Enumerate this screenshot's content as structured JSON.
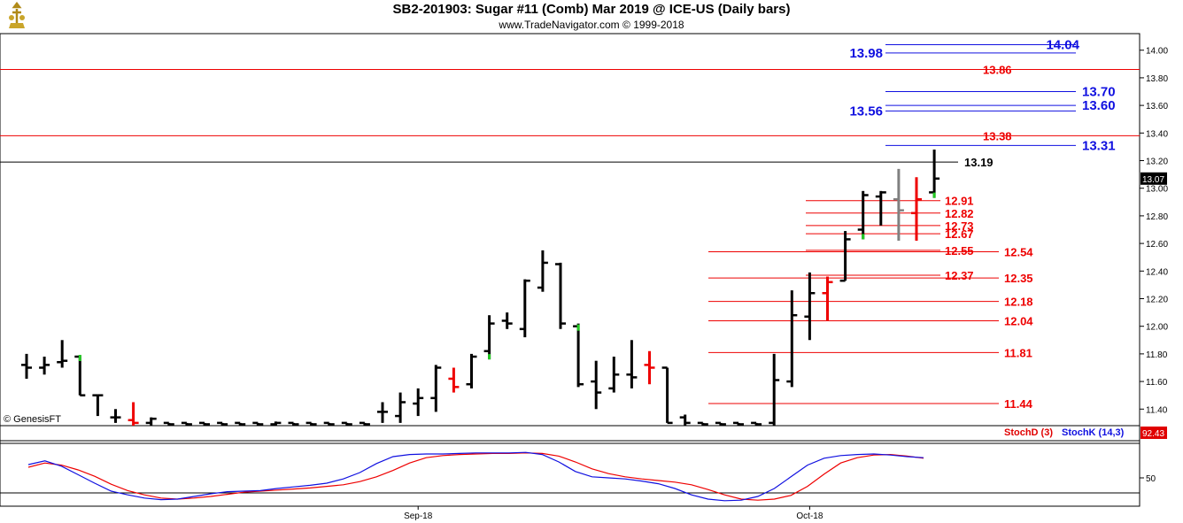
{
  "header": {
    "title": "SB2-201903:  Sugar #11 (Comb) Mar 2019 @ ICE-US  (Daily bars)",
    "subtitle": "www.TradeNavigator.com © 1999-2018"
  },
  "footer": {
    "credit": "© GenesisFT"
  },
  "colors": {
    "up_bar": "#000000",
    "down_bar": "#ee0000",
    "inside_bar": "#808080",
    "green_tick": "#22cc22",
    "red_level": "#ee0000",
    "blue_level": "#1010e0",
    "stoch_d": "#ee0000",
    "stoch_k": "#1010e0"
  },
  "chart_data": [
    {
      "type": "ohlc",
      "y_axis": {
        "ticks": [
          "14.00",
          "13.80",
          "13.60",
          "13.40",
          "13.20",
          "13.00",
          "12.80",
          "12.60",
          "12.40",
          "12.20",
          "12.00",
          "11.80",
          "11.60",
          "11.40"
        ],
        "range": [
          11.28,
          14.12
        ]
      },
      "last_price": "13.07",
      "x_tick_labels": [
        {
          "label": "Sep-18",
          "bar": 22
        },
        {
          "label": "Oct-18",
          "bar": 44
        }
      ],
      "bars": [
        {
          "o": 11.72,
          "h": 11.8,
          "l": 11.62,
          "c": 11.7
        },
        {
          "o": 11.7,
          "h": 11.78,
          "l": 11.65,
          "c": 11.72
        },
        {
          "o": 11.74,
          "h": 11.9,
          "l": 11.7,
          "c": 11.75
        },
        {
          "o": 11.78,
          "h": 11.79,
          "l": 11.5,
          "c": 11.5,
          "mark": "green-open"
        },
        {
          "o": 11.5,
          "h": 11.5,
          "l": 11.35,
          "c": 11.5
        },
        {
          "o": 11.34,
          "h": 11.4,
          "l": 11.3,
          "c": 11.34
        },
        {
          "o": 11.32,
          "h": 11.45,
          "l": 11.28,
          "c": 11.3,
          "color": "down"
        },
        {
          "o": 11.3,
          "h": 11.34,
          "l": 11.28,
          "c": 11.33
        },
        {
          "o": 11.3,
          "h": 11.3,
          "l": 11.28,
          "c": 11.29
        },
        {
          "o": 11.3,
          "h": 11.3,
          "l": 11.28,
          "c": 11.29
        },
        {
          "o": 11.3,
          "h": 11.3,
          "l": 11.28,
          "c": 11.29
        },
        {
          "o": 11.3,
          "h": 11.3,
          "l": 11.28,
          "c": 11.29
        },
        {
          "o": 11.3,
          "h": 11.3,
          "l": 11.28,
          "c": 11.29
        },
        {
          "o": 11.3,
          "h": 11.3,
          "l": 11.28,
          "c": 11.29
        },
        {
          "o": 11.29,
          "h": 11.31,
          "l": 11.28,
          "c": 11.3
        },
        {
          "o": 11.3,
          "h": 11.3,
          "l": 11.28,
          "c": 11.29
        },
        {
          "o": 11.3,
          "h": 11.3,
          "l": 11.28,
          "c": 11.29
        },
        {
          "o": 11.3,
          "h": 11.3,
          "l": 11.28,
          "c": 11.29
        },
        {
          "o": 11.3,
          "h": 11.3,
          "l": 11.28,
          "c": 11.29
        },
        {
          "o": 11.3,
          "h": 11.3,
          "l": 11.28,
          "c": 11.29
        },
        {
          "o": 11.38,
          "h": 11.45,
          "l": 11.3,
          "c": 11.38
        },
        {
          "o": 11.35,
          "h": 11.52,
          "l": 11.3,
          "c": 11.45
        },
        {
          "o": 11.44,
          "h": 11.55,
          "l": 11.35,
          "c": 11.48
        },
        {
          "o": 11.48,
          "h": 11.72,
          "l": 11.38,
          "c": 11.7
        },
        {
          "o": 11.62,
          "h": 11.7,
          "l": 11.52,
          "c": 11.56,
          "color": "down"
        },
        {
          "o": 11.58,
          "h": 11.8,
          "l": 11.55,
          "c": 11.78
        },
        {
          "o": 11.82,
          "h": 12.08,
          "l": 11.76,
          "c": 12.02,
          "mark": "green-low"
        },
        {
          "o": 12.04,
          "h": 12.1,
          "l": 11.98,
          "c": 12.02
        },
        {
          "o": 11.98,
          "h": 12.34,
          "l": 11.92,
          "c": 12.33
        },
        {
          "o": 12.28,
          "h": 12.55,
          "l": 12.25,
          "c": 12.46
        },
        {
          "o": 12.45,
          "h": 12.46,
          "l": 11.98,
          "c": 12.02
        },
        {
          "o": 12.0,
          "h": 12.02,
          "l": 11.56,
          "c": 11.58,
          "mark": "green-open"
        },
        {
          "o": 11.6,
          "h": 11.75,
          "l": 11.4,
          "c": 11.52
        },
        {
          "o": 11.55,
          "h": 11.78,
          "l": 11.52,
          "c": 11.65
        },
        {
          "o": 11.65,
          "h": 11.9,
          "l": 11.55,
          "c": 11.63
        },
        {
          "o": 11.72,
          "h": 11.82,
          "l": 11.58,
          "c": 11.7,
          "color": "down"
        },
        {
          "o": 11.7,
          "h": 11.7,
          "l": 11.3,
          "c": 11.3
        },
        {
          "o": 11.34,
          "h": 11.36,
          "l": 11.28,
          "c": 11.3
        },
        {
          "o": 11.3,
          "h": 11.3,
          "l": 11.28,
          "c": 11.29
        },
        {
          "o": 11.3,
          "h": 11.3,
          "l": 11.28,
          "c": 11.29
        },
        {
          "o": 11.3,
          "h": 11.3,
          "l": 11.28,
          "c": 11.29
        },
        {
          "o": 11.3,
          "h": 11.3,
          "l": 11.28,
          "c": 11.29
        },
        {
          "o": 11.3,
          "h": 11.8,
          "l": 11.28,
          "c": 11.61
        },
        {
          "o": 11.6,
          "h": 12.26,
          "l": 11.56,
          "c": 12.08
        },
        {
          "o": 12.07,
          "h": 12.39,
          "l": 11.9,
          "c": 12.24
        },
        {
          "o": 12.24,
          "h": 12.36,
          "l": 12.04,
          "c": 12.32,
          "color": "down"
        },
        {
          "o": 12.33,
          "h": 12.69,
          "l": 12.33,
          "c": 12.63
        },
        {
          "o": 12.7,
          "h": 12.98,
          "l": 12.63,
          "c": 12.95,
          "mark": "green-low"
        },
        {
          "o": 12.94,
          "h": 12.98,
          "l": 12.73,
          "c": 12.97
        },
        {
          "o": 12.92,
          "h": 13.14,
          "l": 12.62,
          "c": 12.84,
          "color": "inside"
        },
        {
          "o": 12.82,
          "h": 13.08,
          "l": 12.62,
          "c": 12.92,
          "color": "down"
        },
        {
          "o": 12.97,
          "h": 13.28,
          "l": 12.93,
          "c": 13.07,
          "mark": "green-low"
        }
      ],
      "levels": [
        {
          "value": "14.04",
          "color": "blue"
        },
        {
          "value": "13.98",
          "color": "blue"
        },
        {
          "value": "13.86",
          "color": "red"
        },
        {
          "value": "13.70",
          "color": "blue"
        },
        {
          "value": "13.60",
          "color": "blue"
        },
        {
          "value": "13.56",
          "color": "blue"
        },
        {
          "value": "13.38",
          "color": "red"
        },
        {
          "value": "13.31",
          "color": "blue"
        },
        {
          "value": "13.19",
          "color": "black"
        },
        {
          "value": "12.91",
          "color": "red"
        },
        {
          "value": "12.82",
          "color": "red"
        },
        {
          "value": "12.73",
          "color": "red"
        },
        {
          "value": "12.67",
          "color": "red"
        },
        {
          "value": "12.55",
          "color": "red"
        },
        {
          "value": "12.54",
          "color": "red"
        },
        {
          "value": "12.37",
          "color": "red"
        },
        {
          "value": "12.35",
          "color": "red"
        },
        {
          "value": "12.18",
          "color": "red"
        },
        {
          "value": "12.04",
          "color": "red"
        },
        {
          "value": "11.81",
          "color": "red"
        },
        {
          "value": "11.44",
          "color": "red"
        }
      ]
    },
    {
      "type": "line",
      "y_axis": {
        "ticks": [
          "50"
        ],
        "range": [
          0,
          100
        ]
      },
      "last_value": "92.43",
      "series": [
        {
          "name": "StochD (3)",
          "color": "red",
          "values": [
            70,
            78,
            74,
            65,
            53,
            38,
            26,
            18,
            12,
            10,
            12,
            15,
            19,
            23,
            25,
            27,
            29,
            31,
            34,
            37,
            43,
            52,
            64,
            78,
            88,
            92,
            94,
            95,
            96,
            96,
            97,
            96,
            91,
            80,
            67,
            58,
            52,
            48,
            45,
            42,
            37,
            28,
            18,
            10,
            8,
            10,
            17,
            34,
            57,
            78,
            88,
            93,
            94,
            91,
            87
          ]
        },
        {
          "name": "StochK (14,3)",
          "color": "blue",
          "values": [
            75,
            82,
            72,
            56,
            40,
            25,
            18,
            12,
            9,
            10,
            15,
            20,
            24,
            25,
            26,
            30,
            33,
            36,
            40,
            48,
            60,
            77,
            90,
            94,
            95,
            95,
            96,
            97,
            97,
            97,
            98,
            94,
            80,
            62,
            52,
            50,
            48,
            44,
            39,
            30,
            18,
            10,
            7,
            8,
            15,
            30,
            52,
            74,
            87,
            92,
            94,
            95,
            93,
            90,
            88
          ]
        }
      ]
    }
  ]
}
